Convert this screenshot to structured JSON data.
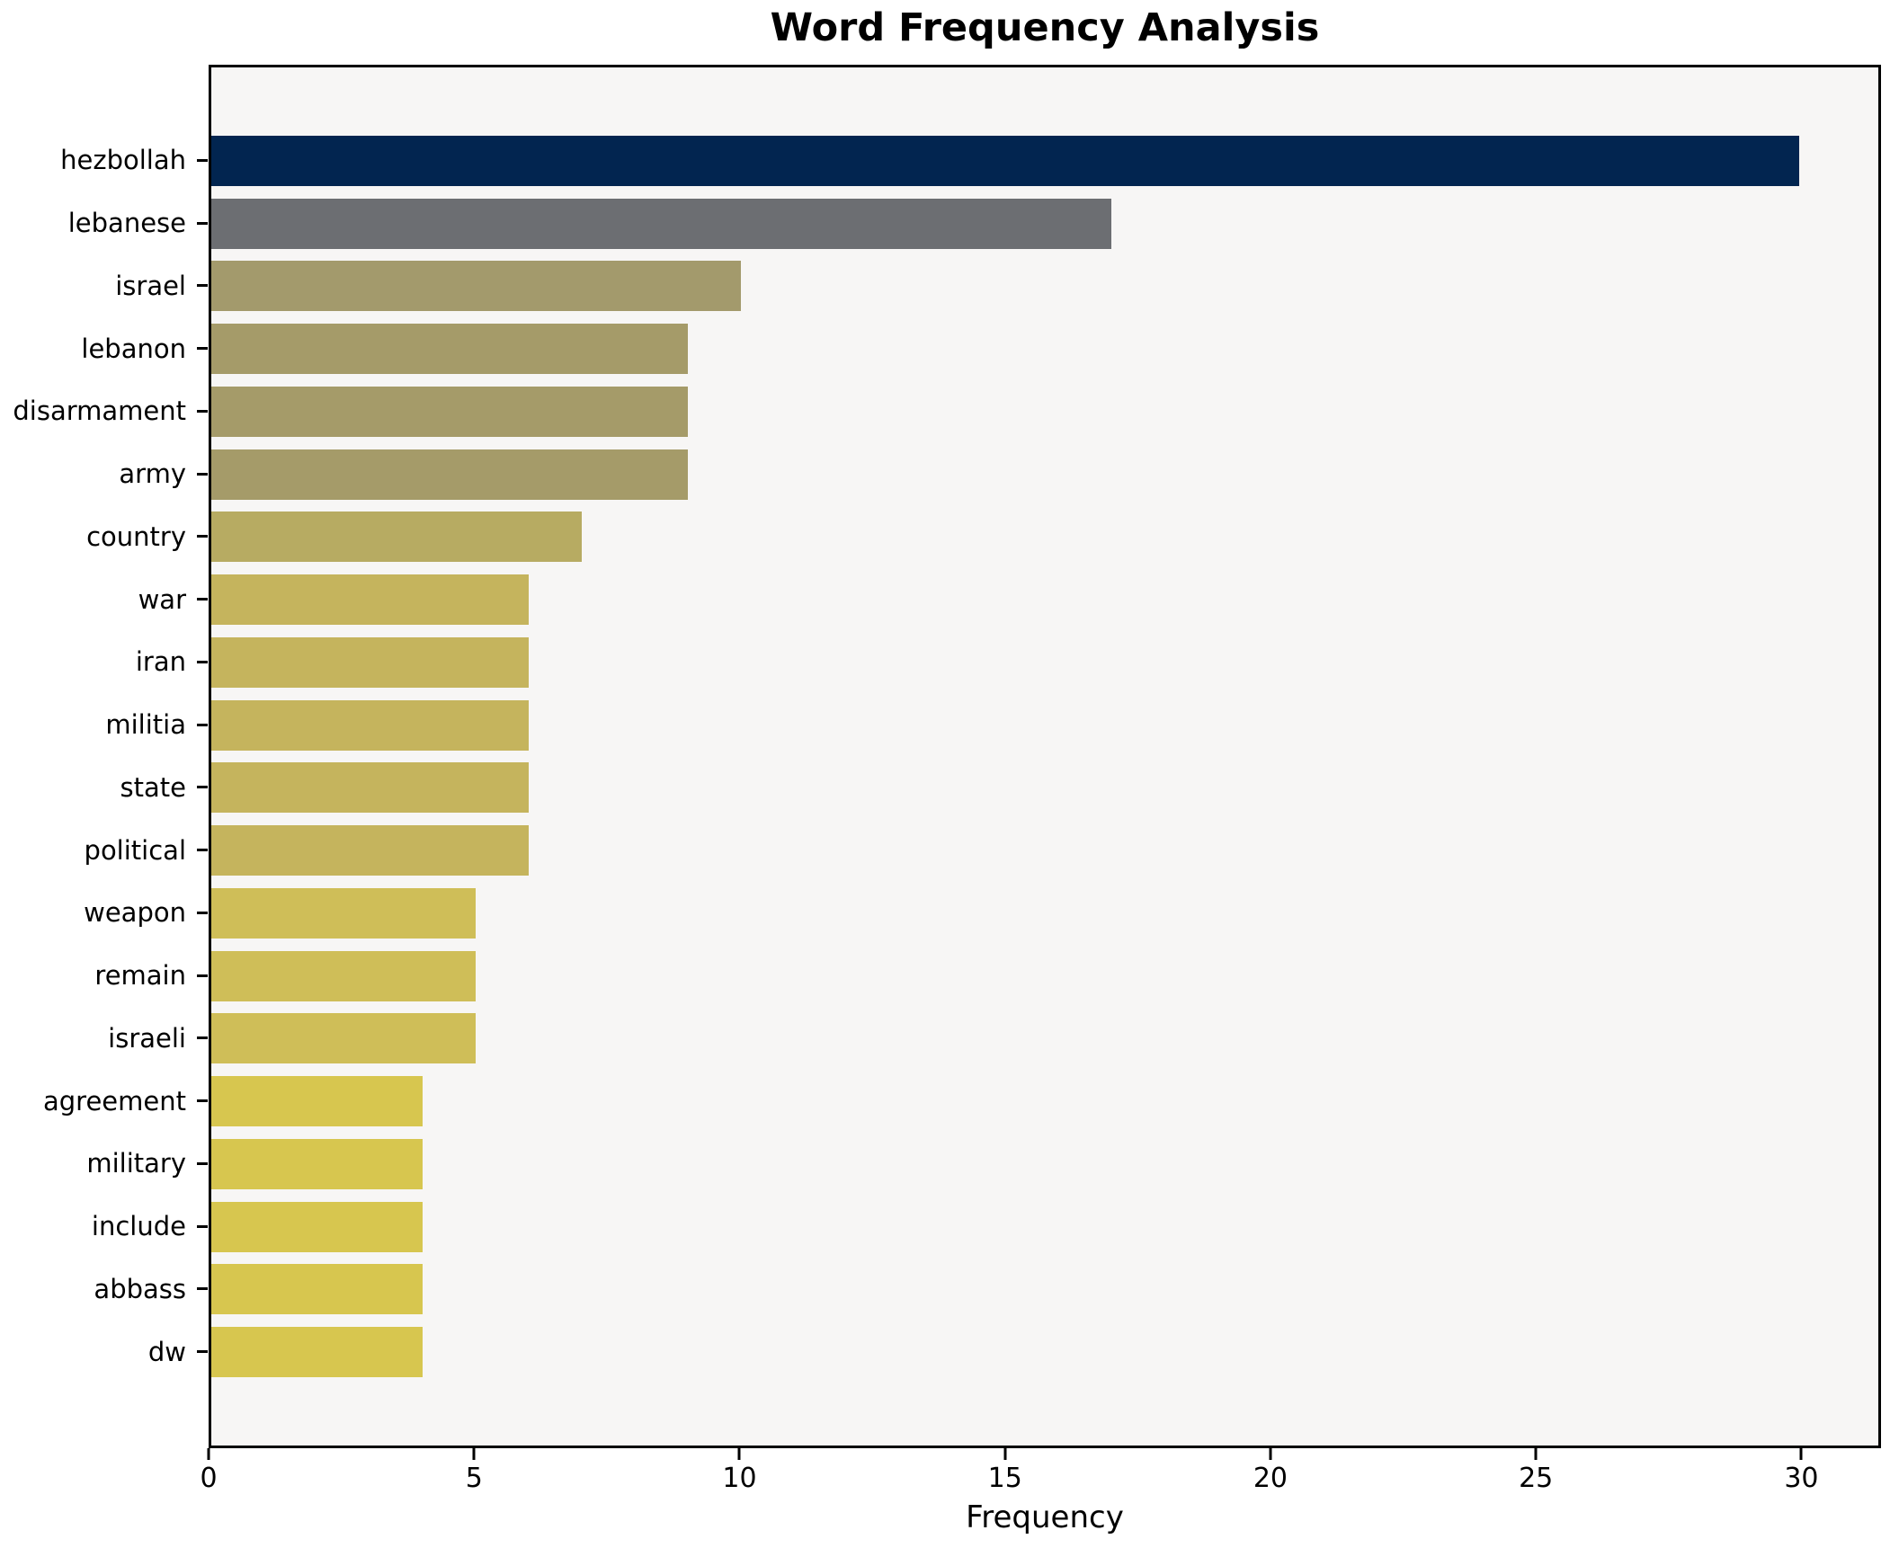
{
  "figure": {
    "title": "Word Frequency Analysis",
    "background_color": "#ffffff",
    "plot_background_color": "#f7f6f5",
    "spine_color": "#000000"
  },
  "chart_data": {
    "type": "bar",
    "orientation": "horizontal",
    "title": "Word Frequency Analysis",
    "xlabel": "Frequency",
    "ylabel": "",
    "categories": [
      "hezbollah",
      "lebanese",
      "israel",
      "lebanon",
      "disarmament",
      "army",
      "country",
      "war",
      "iran",
      "militia",
      "state",
      "political",
      "weapon",
      "remain",
      "israeli",
      "agreement",
      "military",
      "include",
      "abbass",
      "dw"
    ],
    "values": [
      30,
      17,
      10,
      9,
      9,
      9,
      7,
      6,
      6,
      6,
      6,
      6,
      5,
      5,
      5,
      4,
      4,
      4,
      4,
      4
    ],
    "bar_colors": [
      "#022550",
      "#6c6e72",
      "#a39a6c",
      "#a59b69",
      "#a59b69",
      "#a59b69",
      "#b7ab62",
      "#c5b45d",
      "#c5b45d",
      "#c5b45d",
      "#c5b45d",
      "#c5b45d",
      "#cfbe58",
      "#cfbe58",
      "#cfbe58",
      "#d7c64f",
      "#d7c64f",
      "#d7c64f",
      "#d7c64f",
      "#d7c64f"
    ],
    "x_ticks": [
      0,
      5,
      10,
      15,
      20,
      25,
      30
    ],
    "xlim": [
      0,
      31.5
    ],
    "grid": false,
    "legend_position": "none",
    "colormap": "cividis"
  }
}
